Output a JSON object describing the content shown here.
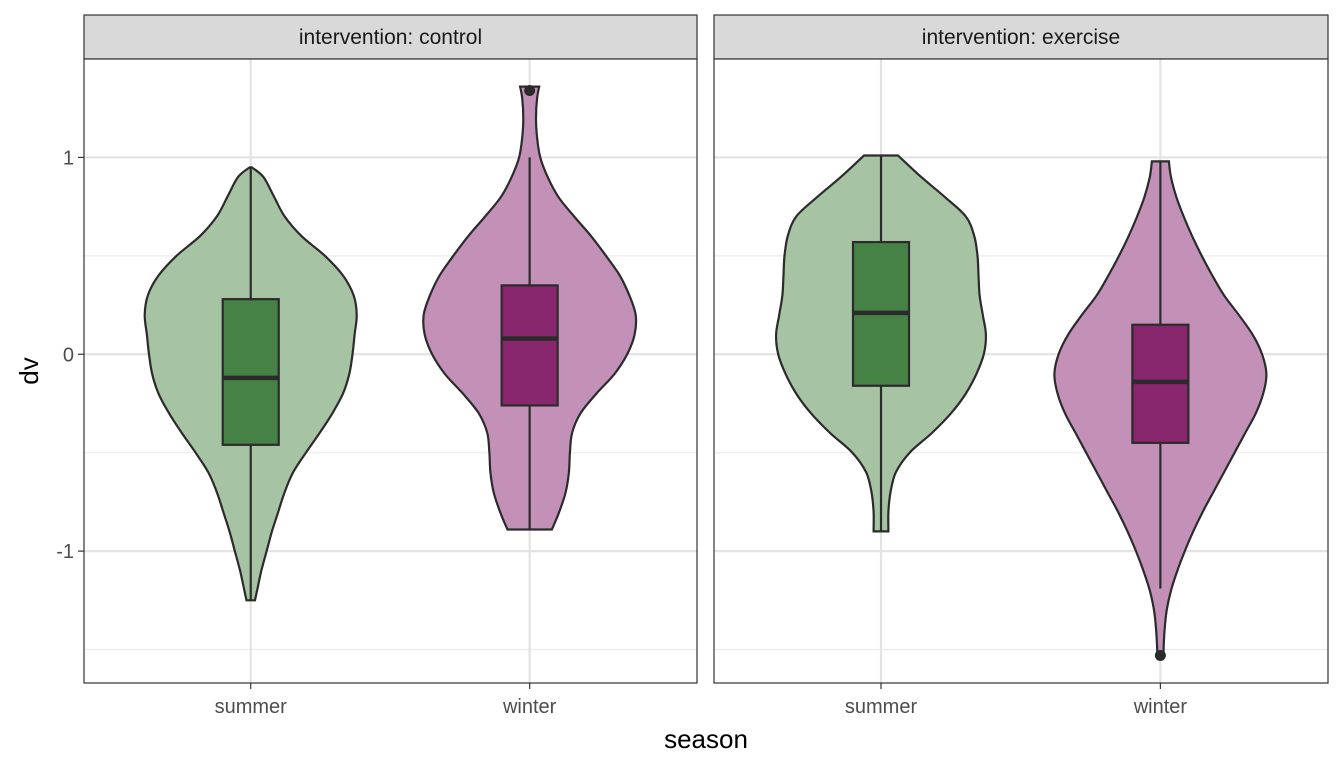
{
  "chart_data": {
    "type": "violin",
    "xlabel": "season",
    "ylabel": "dv",
    "ylim": [
      -1.67,
      1.5
    ],
    "yticks": [
      -1,
      0,
      1
    ],
    "categories": [
      "summer",
      "winter"
    ],
    "grid": true,
    "legend": "none",
    "colors": {
      "summer_violin": "#a6c3a3",
      "summer_box": "#468246",
      "winter_violin": "#c391b8",
      "winter_box": "#88266e",
      "outline": "#2b2b2b",
      "strip_fill": "#d9d9d9"
    },
    "facets": [
      {
        "strip_label": "intervention: control",
        "groups": [
          {
            "category": "summer",
            "box": {
              "q1": -0.46,
              "median": -0.12,
              "q3": 0.28,
              "whisker_low": -1.25,
              "whisker_high": 0.95
            },
            "outliers": [],
            "density": [
              [
                0.95,
                0.01
              ],
              [
                0.9,
                0.12
              ],
              [
                0.8,
                0.22
              ],
              [
                0.7,
                0.32
              ],
              [
                0.6,
                0.48
              ],
              [
                0.5,
                0.7
              ],
              [
                0.4,
                0.87
              ],
              [
                0.3,
                0.97
              ],
              [
                0.2,
                1.0
              ],
              [
                0.1,
                0.98
              ],
              [
                0.0,
                0.96
              ],
              [
                -0.1,
                0.93
              ],
              [
                -0.2,
                0.87
              ],
              [
                -0.3,
                0.77
              ],
              [
                -0.4,
                0.65
              ],
              [
                -0.5,
                0.52
              ],
              [
                -0.6,
                0.4
              ],
              [
                -0.7,
                0.32
              ],
              [
                -0.8,
                0.26
              ],
              [
                -0.9,
                0.2
              ],
              [
                -1.0,
                0.15
              ],
              [
                -1.1,
                0.1
              ],
              [
                -1.2,
                0.06
              ],
              [
                -1.25,
                0.04
              ]
            ]
          },
          {
            "category": "winter",
            "box": {
              "q1": -0.26,
              "median": 0.08,
              "q3": 0.35,
              "whisker_low": -0.89,
              "whisker_high": 1.0
            },
            "outliers": [
              1.34
            ],
            "density": [
              [
                1.36,
                0.09
              ],
              [
                1.3,
                0.07
              ],
              [
                1.2,
                0.06
              ],
              [
                1.1,
                0.07
              ],
              [
                1.0,
                0.1
              ],
              [
                0.9,
                0.17
              ],
              [
                0.8,
                0.27
              ],
              [
                0.7,
                0.42
              ],
              [
                0.6,
                0.58
              ],
              [
                0.5,
                0.72
              ],
              [
                0.4,
                0.85
              ],
              [
                0.3,
                0.94
              ],
              [
                0.2,
                1.0
              ],
              [
                0.1,
                0.99
              ],
              [
                0.0,
                0.92
              ],
              [
                -0.1,
                0.8
              ],
              [
                -0.2,
                0.63
              ],
              [
                -0.3,
                0.48
              ],
              [
                -0.4,
                0.4
              ],
              [
                -0.5,
                0.38
              ],
              [
                -0.6,
                0.37
              ],
              [
                -0.7,
                0.34
              ],
              [
                -0.8,
                0.28
              ],
              [
                -0.89,
                0.21
              ]
            ]
          }
        ]
      },
      {
        "strip_label": "intervention: exercise",
        "groups": [
          {
            "category": "summer",
            "box": {
              "q1": -0.16,
              "median": 0.21,
              "q3": 0.57,
              "whisker_low": -0.9,
              "whisker_high": 1.01
            },
            "outliers": [],
            "density": [
              [
                1.01,
                0.16
              ],
              [
                0.9,
                0.38
              ],
              [
                0.8,
                0.6
              ],
              [
                0.7,
                0.8
              ],
              [
                0.6,
                0.88
              ],
              [
                0.5,
                0.91
              ],
              [
                0.4,
                0.92
              ],
              [
                0.3,
                0.93
              ],
              [
                0.2,
                0.96
              ],
              [
                0.1,
                0.99
              ],
              [
                0.0,
                0.97
              ],
              [
                -0.1,
                0.9
              ],
              [
                -0.2,
                0.8
              ],
              [
                -0.3,
                0.66
              ],
              [
                -0.4,
                0.48
              ],
              [
                -0.5,
                0.27
              ],
              [
                -0.6,
                0.14
              ],
              [
                -0.7,
                0.09
              ],
              [
                -0.8,
                0.07
              ],
              [
                -0.9,
                0.07
              ]
            ]
          },
          {
            "category": "winter",
            "box": {
              "q1": -0.45,
              "median": -0.14,
              "q3": 0.15,
              "whisker_low": -1.19,
              "whisker_high": 0.98
            },
            "outliers": [
              -1.53
            ],
            "density": [
              [
                0.98,
                0.08
              ],
              [
                0.9,
                0.1
              ],
              [
                0.8,
                0.15
              ],
              [
                0.7,
                0.22
              ],
              [
                0.6,
                0.3
              ],
              [
                0.5,
                0.39
              ],
              [
                0.4,
                0.49
              ],
              [
                0.3,
                0.6
              ],
              [
                0.2,
                0.74
              ],
              [
                0.1,
                0.87
              ],
              [
                0.0,
                0.96
              ],
              [
                -0.1,
                1.0
              ],
              [
                -0.2,
                0.97
              ],
              [
                -0.3,
                0.9
              ],
              [
                -0.4,
                0.8
              ],
              [
                -0.5,
                0.7
              ],
              [
                -0.6,
                0.6
              ],
              [
                -0.7,
                0.5
              ],
              [
                -0.8,
                0.4
              ],
              [
                -0.9,
                0.31
              ],
              [
                -1.0,
                0.23
              ],
              [
                -1.1,
                0.16
              ],
              [
                -1.2,
                0.1
              ],
              [
                -1.3,
                0.06
              ],
              [
                -1.4,
                0.04
              ],
              [
                -1.5,
                0.03
              ],
              [
                -1.53,
                0.03
              ]
            ]
          }
        ]
      }
    ]
  }
}
